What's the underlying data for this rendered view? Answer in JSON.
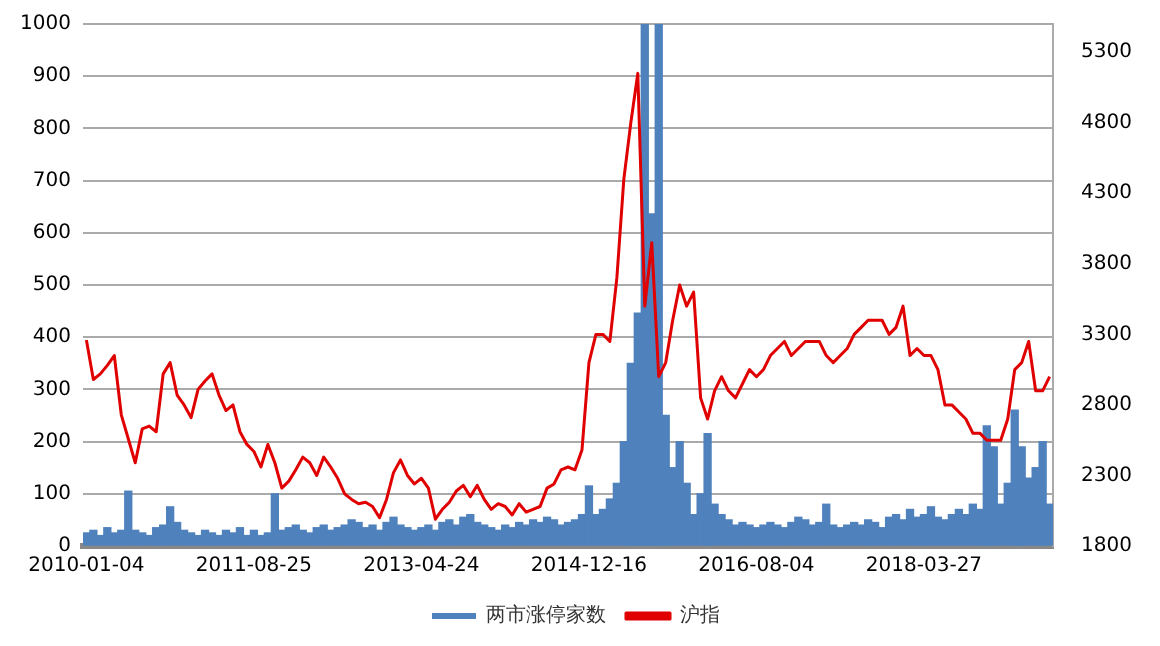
{
  "chart_data": {
    "type": "bar",
    "categories": [
      "2010-01-04",
      null,
      null,
      null,
      null,
      null,
      null,
      null,
      null,
      null,
      null,
      null,
      null,
      null,
      null,
      null,
      null,
      null,
      null,
      null,
      null,
      null,
      null,
      null,
      "2011-08-25",
      null,
      null,
      null,
      null,
      null,
      null,
      null,
      null,
      null,
      null,
      null,
      null,
      null,
      null,
      null,
      null,
      null,
      null,
      null,
      null,
      null,
      null,
      null,
      "2013-04-24",
      null,
      null,
      null,
      null,
      null,
      null,
      null,
      null,
      null,
      null,
      null,
      null,
      null,
      null,
      null,
      null,
      null,
      null,
      null,
      null,
      null,
      null,
      null,
      "2014-12-16",
      null,
      null,
      null,
      null,
      null,
      null,
      null,
      null,
      null,
      null,
      null,
      null,
      null,
      null,
      null,
      null,
      null,
      null,
      null,
      null,
      null,
      null,
      null,
      "2016-08-04",
      null,
      null,
      null,
      null,
      null,
      null,
      null,
      null,
      null,
      null,
      null,
      null,
      null,
      null,
      null,
      null,
      null,
      null,
      null,
      null,
      null,
      null,
      null,
      "2018-03-27",
      null,
      null,
      null,
      null,
      null,
      null,
      null,
      null,
      null,
      null,
      null,
      null,
      null,
      null,
      null,
      null,
      null,
      null
    ],
    "series": [
      {
        "name": "两市涨停家数",
        "color": "#4f81bd",
        "values": [
          25,
          30,
          20,
          35,
          25,
          30,
          105,
          30,
          25,
          20,
          35,
          40,
          75,
          45,
          30,
          25,
          20,
          30,
          25,
          20,
          30,
          25,
          35,
          20,
          30,
          20,
          25,
          100,
          30,
          35,
          40,
          30,
          25,
          35,
          40,
          30,
          35,
          40,
          50,
          45,
          35,
          40,
          30,
          45,
          55,
          40,
          35,
          30,
          35,
          40,
          30,
          45,
          50,
          40,
          55,
          60,
          45,
          40,
          35,
          30,
          40,
          35,
          45,
          40,
          50,
          45,
          55,
          50,
          40,
          45,
          50,
          60,
          115,
          60,
          70,
          90,
          120,
          200,
          350,
          446,
          1000,
          636,
          1000,
          250,
          150,
          200,
          120,
          60,
          100,
          215,
          80,
          60,
          50,
          40,
          45,
          40,
          35,
          40,
          45,
          40,
          35,
          45,
          55,
          50,
          40,
          45,
          80,
          40,
          35,
          40,
          45,
          40,
          50,
          45,
          35,
          55,
          60,
          50,
          70,
          55,
          60,
          75,
          55,
          50,
          60,
          70,
          60,
          80,
          70,
          230,
          190,
          80,
          120,
          260,
          190,
          130,
          150,
          200,
          80
        ]
      },
      {
        "name": "沪指",
        "type": "line",
        "axis": "y2",
        "color": "#e00000",
        "values": [
          3260,
          2980,
          3020,
          3080,
          3150,
          2730,
          2560,
          2390,
          2630,
          2650,
          2610,
          3020,
          3100,
          2870,
          2800,
          2710,
          2910,
          2970,
          3020,
          2870,
          2760,
          2800,
          2610,
          2520,
          2470,
          2360,
          2520,
          2390,
          2210,
          2260,
          2340,
          2430,
          2390,
          2300,
          2430,
          2360,
          2280,
          2170,
          2130,
          2100,
          2110,
          2080,
          2000,
          2130,
          2320,
          2410,
          2300,
          2240,
          2280,
          2210,
          1990,
          2060,
          2110,
          2190,
          2230,
          2150,
          2230,
          2130,
          2060,
          2100,
          2080,
          2020,
          2100,
          2040,
          2060,
          2080,
          2210,
          2240,
          2340,
          2360,
          2340,
          2480,
          3100,
          3300,
          3300,
          3250,
          3700,
          4400,
          4800,
          5150,
          3500,
          3950,
          3000,
          3100,
          3400,
          3650,
          3500,
          3600,
          2850,
          2700,
          2900,
          3000,
          2900,
          2850,
          2950,
          3050,
          3000,
          3050,
          3150,
          3200,
          3250,
          3150,
          3200,
          3250,
          3250,
          3250,
          3150,
          3100,
          3150,
          3200,
          3300,
          3350,
          3400,
          3400,
          3400,
          3300,
          3350,
          3500,
          3150,
          3200,
          3150,
          3150,
          3050,
          2800,
          2800,
          2750,
          2700,
          2600,
          2600,
          2550,
          2550,
          2550,
          2700,
          3050,
          3100,
          3250,
          2900,
          2900,
          3000
        ]
      }
    ],
    "ylim": [
      0,
      1000
    ],
    "yticks": [
      0,
      100,
      200,
      300,
      400,
      500,
      600,
      700,
      800,
      900,
      1000
    ],
    "y2lim": [
      1800,
      5500
    ],
    "y2ticks": [
      1800,
      2300,
      2800,
      3300,
      3800,
      4300,
      4800,
      5300
    ],
    "grid": "y",
    "legend": "bottom",
    "marker": "none",
    "line_style": "solid"
  }
}
